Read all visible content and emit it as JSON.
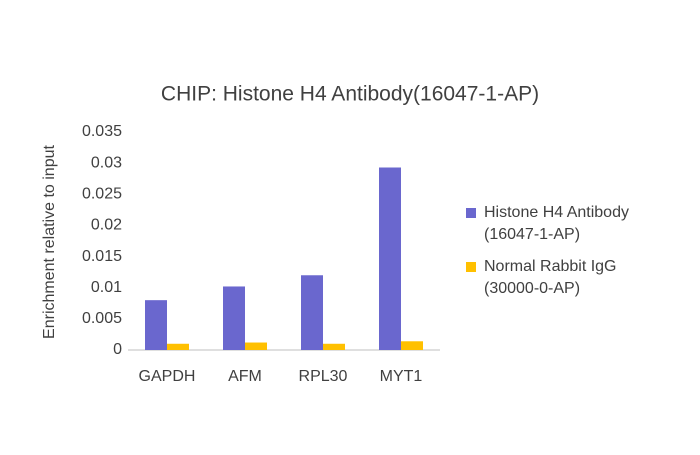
{
  "chart_data": {
    "type": "bar",
    "title": "CHIP: Histone H4  Antibody(16047-1-AP)",
    "y_label": "Enrichment relative to input",
    "categories": [
      "GAPDH",
      "AFM",
      "RPL30",
      "MYT1"
    ],
    "series": [
      {
        "name": "Histone H4 Antibody (16047-1-AP)",
        "color": "#6a67ce",
        "values": [
          0.008,
          0.0102,
          0.012,
          0.0293
        ]
      },
      {
        "name": "Normal Rabbit IgG (30000-0-AP)",
        "color": "#ffc000",
        "values": [
          0.001,
          0.0012,
          0.001,
          0.0014
        ]
      }
    ],
    "ylim": [
      0,
      0.035
    ],
    "yticks": [
      0,
      0.005,
      0.01,
      0.015,
      0.02,
      0.025,
      0.03,
      0.035
    ],
    "grid": false,
    "legend": "right"
  }
}
